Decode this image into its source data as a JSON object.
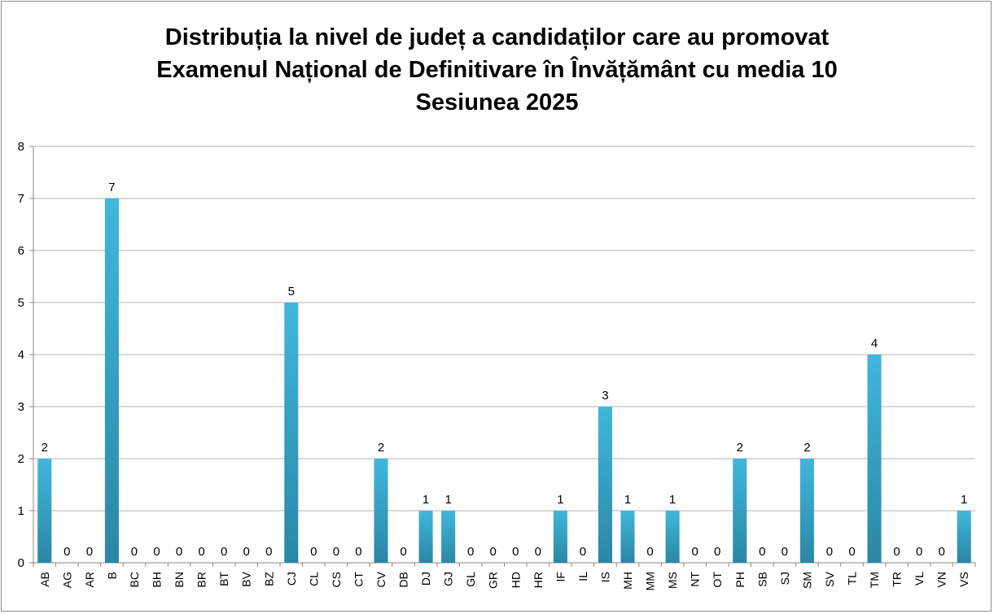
{
  "chart_data": {
    "type": "bar",
    "title_lines": [
      "Distribuția la nivel de județ a candidaților care au promovat",
      "Examenul Național de Definitivare în Învățământ cu media 10",
      "Sesiunea 2025"
    ],
    "categories": [
      "AB",
      "AG",
      "AR",
      "B",
      "BC",
      "BH",
      "BN",
      "BR",
      "BT",
      "BV",
      "BZ",
      "CJ",
      "CL",
      "CS",
      "CT",
      "CV",
      "DB",
      "DJ",
      "GJ",
      "GL",
      "GR",
      "HD",
      "HR",
      "IF",
      "IL",
      "IS",
      "MH",
      "MM",
      "MS",
      "NT",
      "OT",
      "PH",
      "SB",
      "SJ",
      "SM",
      "SV",
      "TL",
      "TM",
      "TR",
      "VL",
      "VN",
      "VS"
    ],
    "values": [
      2,
      0,
      0,
      7,
      0,
      0,
      0,
      0,
      0,
      0,
      0,
      5,
      0,
      0,
      0,
      2,
      0,
      1,
      1,
      0,
      0,
      0,
      0,
      1,
      0,
      3,
      1,
      0,
      1,
      0,
      0,
      2,
      0,
      0,
      2,
      0,
      0,
      4,
      0,
      0,
      0,
      1
    ],
    "ylim": [
      0,
      8
    ],
    "yticks": [
      0,
      1,
      2,
      3,
      4,
      5,
      6,
      7,
      8
    ],
    "grid": true,
    "data_labels": true,
    "legend": "none",
    "colors": {
      "bar_top": "#40b7dc",
      "bar_bottom": "#2a87a4",
      "grid": "#b4b4b4",
      "axis": "#8a8a8a"
    }
  }
}
